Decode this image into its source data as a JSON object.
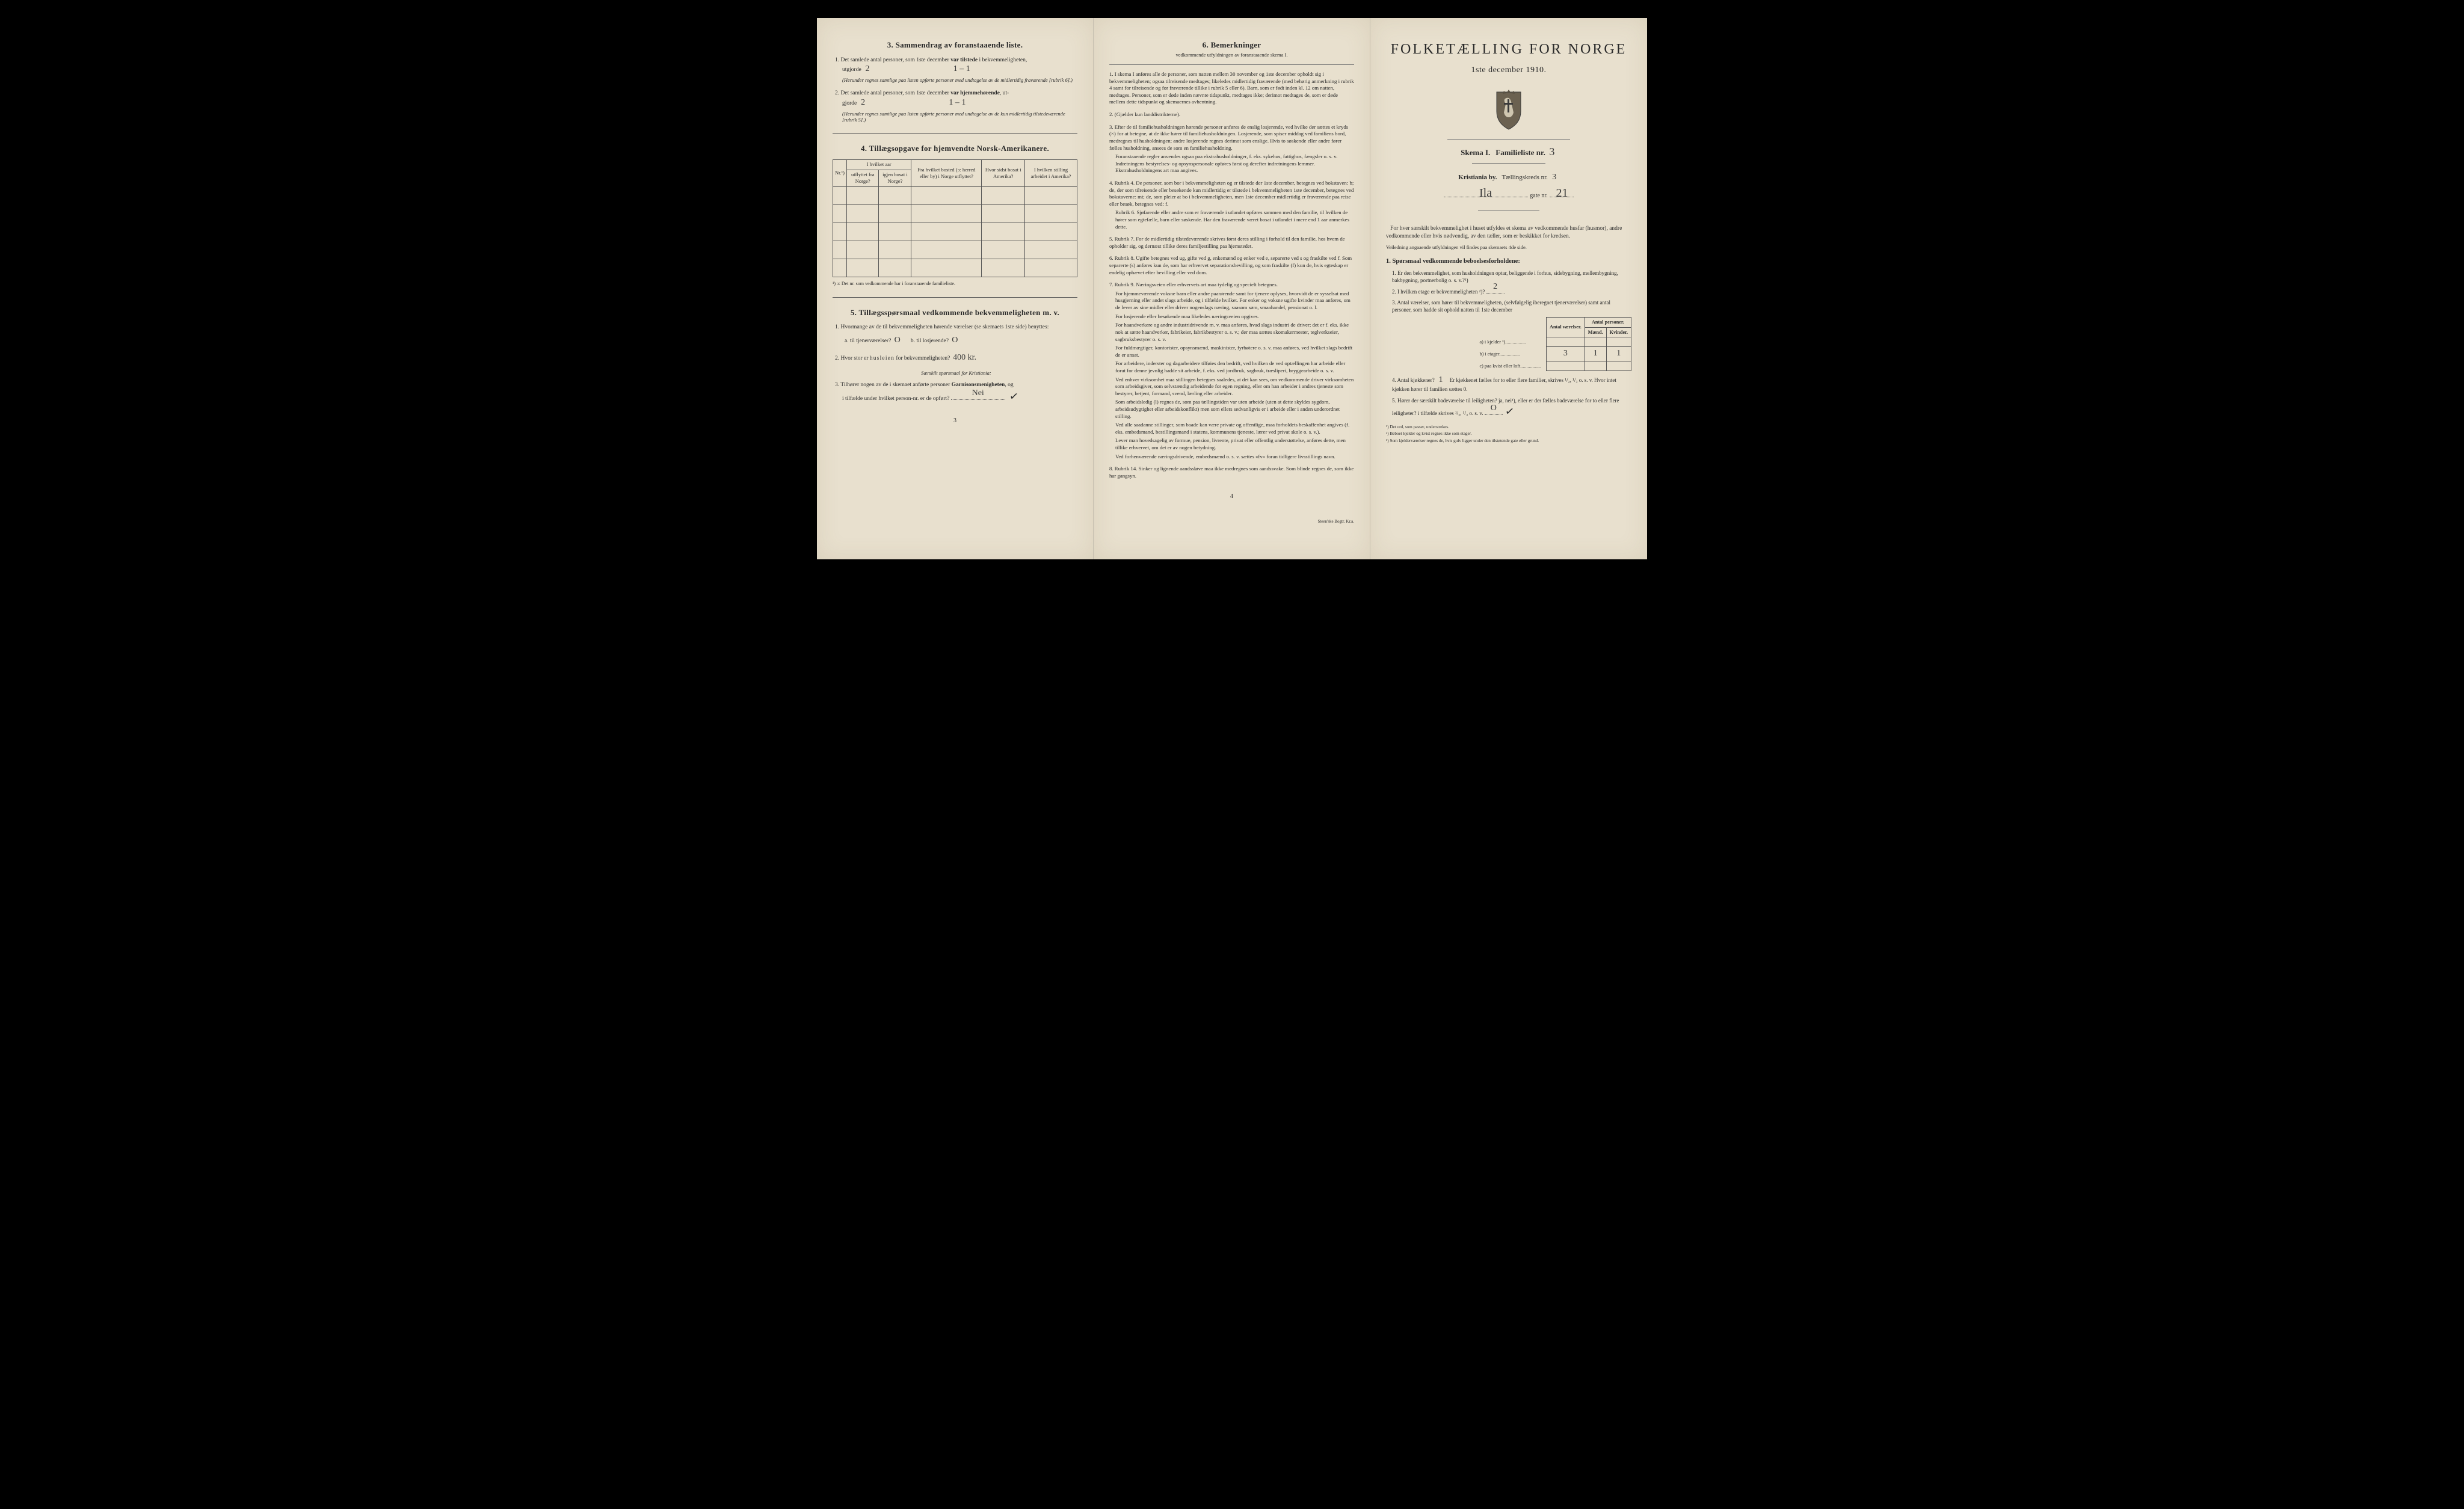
{
  "background_color": "#000000",
  "paper_color": "#e8e0ce",
  "text_color": "#2a2a2a",
  "handwriting_color": "#3a3a3a",
  "left": {
    "sec3": {
      "heading": "3.   Sammendrag av foranstaaende liste.",
      "item1": {
        "num": "1.",
        "text_a": "Det samlede antal personer, som 1ste december ",
        "bold_a": "var tilstede",
        "text_b": " i bekvemmeligheten,",
        "text_c": "utgjorde ",
        "hand": "2",
        "tally": "1 – 1",
        "paren": "(Herunder regnes samtlige paa listen opførte personer med undtagelse av de midlertidig fraværende [rubrik 6].)"
      },
      "item2": {
        "num": "2.",
        "text_a": "Det samlede antal personer, som 1ste december ",
        "bold_a": "var hjemmehørende",
        "text_b": ", ut-",
        "text_c": "gjorde ",
        "hand": "2",
        "tally": "1 – 1",
        "paren": "(Herunder regnes samtlige paa listen opførte personer med undtagelse av de kun midlertidig tilstedeværende [rubrik 5].)"
      }
    },
    "sec4": {
      "heading": "4.   Tillægsopgave for hjemvendte Norsk-Amerikanere.",
      "table": {
        "cols": [
          {
            "key": "nr",
            "header": "Nr.¹)",
            "width": 28
          },
          {
            "key": "utfl",
            "header": "utflyttet fra Norge?",
            "group": "I hvilket aar",
            "width": 52
          },
          {
            "key": "bosat",
            "header": "igjen bosat i Norge?",
            "group": "I hvilket aar",
            "width": 52
          },
          {
            "key": "bosted",
            "header": "Fra hvilket bosted (ɔ: herred eller by) i Norge utflyttet?",
            "width": 100
          },
          {
            "key": "sidst",
            "header": "Hvor sidst bosat i Amerika?",
            "width": 80
          },
          {
            "key": "stilling",
            "header": "I hvilken stilling arbeidet i Amerika?",
            "width": 94
          }
        ],
        "group_header": "I hvilket aar",
        "blank_rows": 5,
        "footnote": "¹) ɔ: Det nr. som vedkommende har i foranstaaende familieliste."
      }
    },
    "sec5": {
      "heading": "5.   Tillægsspørsmaal vedkommende bekvemmeligheten m. v.",
      "item1": {
        "num": "1.",
        "text": "Hvormange av de til bekvemmeligheten hørende værelser (se skemaets 1ste side) benyttes:",
        "a_label": "a.  til tjenerværelser?",
        "a_hand": "O",
        "b_label": "b.  til losjerende?",
        "b_hand": "O"
      },
      "item2": {
        "num": "2.",
        "text_a": "Hvor stor er ",
        "spaced": "husleien",
        "text_b": " for bekvemmeligheten?",
        "hand": "400 kr."
      },
      "subnote": "Særskilt spørsmaal for Kristiania:",
      "item3": {
        "num": "3.",
        "text_a": "Tilhører nogen av de i skemaet anførte personer ",
        "bold": "Garnisonsmenigheten",
        "text_b": ", og",
        "text_c": "i tilfælde under hvilket person-nr. er de opført?",
        "hand": "Nei",
        "check": "✓"
      }
    },
    "page_num": "3"
  },
  "mid": {
    "heading": "6.   Bemerkninger",
    "subheading": "vedkommende utfyldningen av foranstaaende skema I.",
    "items": [
      {
        "num": "1.",
        "body": "I skema I anføres alle de personer, som natten mellem 30 november og 1ste december opholdt sig i bekvemmeligheten; ogsaa tilreisende medtages; likeledes midlertidig fraværende (med behørig anmerkning i rubrik 4 samt for tilreisende og for fraværende tillike i rubrik 5 eller 6). Barn, som er født inden kl. 12 om natten, medtages. Personer, som er døde inden nævnte tidspunkt, medtages ikke; derimot medtages de, som er døde mellem dette tidspunkt og skemaernes avhentning."
      },
      {
        "num": "2.",
        "body": "(Gjælder kun landdistrikterne)."
      },
      {
        "num": "3.",
        "body": "Efter de til familiehusholdningen hørende personer anføres de enslig losjerende, ved hvilke der sættes et kryds (×) for at betegne, at de ikke hører til familiehusholdningen. Losjerende, som spiser middag ved familiens bord, medregnes til husholdningen; andre losjerende regnes derimot som enslige. Hvis to søskende eller andre fører fælles husholdning, ansees de som en familiehusholdning.",
        "extra": "Foranstaaende regler anvendes ogsaa paa ekstrahusholdninger, f. eks. sykehus, fattighus, fængsler o. s. v. Indretningens bestyrelses- og opsynspersonale opføres først og derefter indretningens lemmer. Ekstrahusholdningens art maa angives."
      },
      {
        "num": "4.",
        "body": "Rubrik 4. De personer, som bor i bekvemmeligheten og er tilstede der 1ste december, betegnes ved bokstaven: b; de, der som tilreisende eller besøkende kun midlertidig er tilstede i bekvemmeligheten 1ste december, betegnes ved bokstaverne: mt; de, som pleier at bo i bekvemmeligheten, men 1ste december midlertidig er fraværende paa reise eller besøk, betegnes ved: f.",
        "extra": "Rubrik 6. Sjøfarende eller andre som er fraværende i utlandet opføres sammen med den familie, til hvilken de hører som egtefælle, barn eller søskende.  Har den fraværende været bosat i utlandet i mere end 1 aar anmerkes dette."
      },
      {
        "num": "5.",
        "body": "Rubrik 7. For de midlertidig tilstedeværende skrives først deres stilling i forhold til den familie, hos hvem de opholder sig, og dernæst tillike deres familjestilling paa hjemstedet."
      },
      {
        "num": "6.",
        "body": "Rubrik 8. Ugifte betegnes ved ug, gifte ved g, enkemænd og enker ved e, separerte ved s og fraskilte ved f. Som separerte (s) anføres kun de, som har erhvervet separationsbevilling, og som fraskilte (f) kun de, hvis egteskap er endelig ophævet efter bevilling eller ved dom."
      },
      {
        "num": "7.",
        "body": "Rubrik 9. Næringsveien eller erhvervets art maa tydelig og specielt betegnes.",
        "sub": [
          "For hjemmeværende voksne barn eller andre paarørende samt for tjenere oplyses, hvorvidt de er sysselsat med husgjerning eller andet slags arbeide, og i tilfælde hvilket. For enker og voksne ugifte kvinder maa anføres, om de lever av sine midler eller driver nogenslags næring, saasom søm, smaahandel, pensionat o. l.",
          "For losjerende eller besøkende maa likeledes næringsveien opgives.",
          "For haandverkere og andre industridrivende m. v. maa anføres, hvad slags industri de driver; det er f. eks. ikke nok at sætte haandverker, fabrikeier, fabrikbestyrer o. s. v.; der maa sættes skomakermester, teglverkseier, sagbruksbestyrer o. s. v.",
          "For fuldmægtiger, kontorister, opsynsmænd, maskinister, fyrbøtere o. s. v. maa anføres, ved hvilket slags bedrift de er ansat.",
          "For arbeidere, inderster og dagarbeidere tilføies den bedrift, ved hvilken de ved optællingen har arbeide eller forut for denne jevnlig hadde sit arbeide, f. eks. ved jordbruk, sagbruk, træsliperi, bryggearbeide o. s. v.",
          "Ved enhver virksomhet maa stillingen betegnes saaledes, at det kan sees, om vedkommende driver virksomheten som arbeidsgiver, som selvstændig arbeidende for egen regning, eller om han arbeider i andres tjeneste som bestyrer, betjent, formand, svend, lærling eller arbeider.",
          "Som arbeidsledig (l) regnes de, som paa tællingstiden var uten arbeide (uten at dette skyldes sygdom, arbeidsudygtighet eller arbeidskonflikt) men som ellers sedvanligvis er i arbeide eller i anden underordnet stilling.",
          "Ved alle saadanne stillinger, som baade kan være private og offentlige, maa forholdets beskaffenhet angives (f. eks. embedsmand, bestillingsmand i statens, kommunens tjeneste, lærer ved privat skole o. s. v.).",
          "Lever man hovedsagelig av formue, pension, livrente, privat eller offentlig understøttelse, anføres dette, men tillike erhvervet, om det er av nogen betydning.",
          "Ved forhenværende næringsdrivende, embedsmænd o. s. v. sættes «fv» foran tidligere livsstillings navn."
        ]
      },
      {
        "num": "8.",
        "body": "Rubrik 14. Sinker og lignende aandssløve maa ikke medregnes som aandssvake. Som blinde regnes de, som ikke har gangsyn."
      }
    ],
    "page_num": "4",
    "printer": "Steen'ske Bogtr.  Kr.a."
  },
  "right": {
    "main_title": "FOLKETÆLLING FOR NORGE",
    "sub_title": "1ste december 1910.",
    "skema_a": "Skema I.",
    "skema_b": "Familieliste nr.",
    "skema_hand": "3",
    "kristiania_a": "Kristiania by.",
    "kristiania_b": "Tællingskreds nr.",
    "kreds_hand": "3",
    "gate_hand": "Ila",
    "gate_label": "gate nr.",
    "gate_nr_hand": "21",
    "instruction": "For hver særskilt bekvemmelighet i huset utfyldes et skema av vedkommende husfar (husmor), andre vedkommende eller hvis nødvendig, av den tæller, som er beskikket for kredsen.",
    "instr_note": "Veiledning angaaende utfyldningen vil findes paa skemaets 4de side.",
    "qhead": "1. Spørsmaal vedkommende beboelsesforholdene:",
    "q1": "1.  Er den bekvemmelighet, som husholdningen optar, beliggende i forhus, sidebygning, mellembygning, bakbygning, portnerbolig o. s. v.?¹)",
    "q2": "2.  I hvilken etage er bekvemmeligheten ²)?",
    "q2_hand": "2",
    "q3": "3.  Antal værelser, som hører til bekvemmeligheten, (selvfølgelig iberegnet tjenerværelser) samt antal personer, som hadde sit ophold natten til 1ste december",
    "roomtable": {
      "headers": {
        "a": "Antal værelser.",
        "b": "Antal personer.",
        "b1": "Mænd.",
        "b2": "Kvinder."
      },
      "rows": [
        {
          "label": "a) i kjelder ³)",
          "v": "",
          "m": "",
          "k": ""
        },
        {
          "label": "b) i etager",
          "v": "3",
          "m": "1",
          "k": "1"
        },
        {
          "label": "c) paa kvist eller loft",
          "v": "",
          "m": "",
          "k": ""
        }
      ]
    },
    "q4": {
      "a": "4.  Antal kjøkkener?",
      "hand": "1",
      "b": "Er kjøkkenet fælles for to eller flere familier, skrives ¹/₂, ¹/₃ o. s. v.  Hvor intet kjøkken hører til familien sættes 0."
    },
    "q5": {
      "a": "5.  Hører der særskilt badeværelse til leiligheten?  ja,  nei¹), eller er der fælles badeværelse for to eller flere leiligheter?  i tilfælde skrives ¹/₂, ¹/₃ o. s. v.",
      "hand": "O",
      "check": "✓"
    },
    "rnotes": [
      "¹) Det ord, som passer, understrekes.",
      "²) Beboet kjelder og kvist regnes ikke som etager.",
      "³) Som kjelderværelser regnes de, hvis gulv ligger under den tilstøtende gate eller grund."
    ]
  }
}
